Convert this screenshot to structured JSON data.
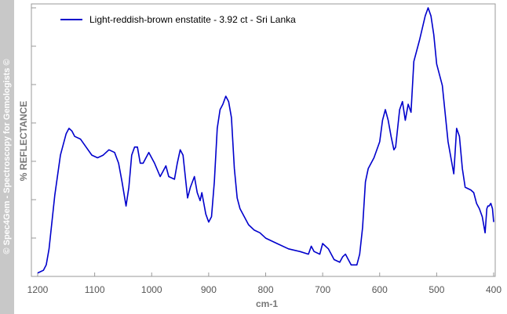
{
  "watermark": "© Spec4Gem - Spectroscopy for Gemologists ©",
  "colors": {
    "series": "#0000cc",
    "frame": "#9a9a9a",
    "sidebar": "#c8c8c8"
  },
  "chart_data": {
    "type": "line",
    "title": "",
    "xlabel": "cm-1",
    "ylabel": "% REFLECTANCE",
    "xlim": [
      1200,
      400
    ],
    "x_reversed": true,
    "ylim": [
      0,
      100
    ],
    "y_tick_labels_shown": false,
    "legend_position": "top-left",
    "x_ticks": [
      1200,
      1100,
      1000,
      900,
      800,
      700,
      600,
      500,
      400
    ],
    "x_tick_labels": [
      "1200",
      "1100",
      "1000",
      "900",
      "800",
      "700",
      "600",
      "500",
      "400"
    ],
    "series": [
      {
        "name": "Light-reddish-brown enstatite - 3.92 ct - Sri Lanka",
        "color": "#0000cc",
        "x": [
          1200,
          1190,
          1185,
          1180,
          1170,
          1160,
          1150,
          1145,
          1140,
          1135,
          1125,
          1115,
          1105,
          1095,
          1085,
          1075,
          1065,
          1058,
          1052,
          1045,
          1040,
          1035,
          1030,
          1025,
          1020,
          1015,
          1010,
          1005,
          995,
          985,
          980,
          975,
          970,
          960,
          955,
          950,
          945,
          937,
          932,
          925,
          920,
          915,
          912,
          905,
          900,
          895,
          890,
          885,
          880,
          875,
          870,
          865,
          860,
          855,
          850,
          845,
          840,
          830,
          820,
          810,
          800,
          780,
          760,
          740,
          725,
          720,
          715,
          705,
          700,
          690,
          680,
          670,
          665,
          660,
          655,
          650,
          645,
          640,
          635,
          630,
          625,
          620,
          610,
          600,
          595,
          590,
          585,
          580,
          575,
          572,
          565,
          560,
          555,
          550,
          545,
          540,
          530,
          520,
          515,
          510,
          505,
          500,
          490,
          480,
          470,
          465,
          460,
          455,
          450,
          440,
          435,
          430,
          425,
          420,
          415,
          412,
          410,
          408,
          405,
          402,
          400
        ],
        "y": [
          1,
          2,
          4,
          10,
          30,
          45,
          53,
          55,
          54,
          52,
          51,
          48,
          45,
          44,
          45,
          47,
          46,
          42,
          35,
          26,
          33,
          45,
          48,
          48,
          42,
          42,
          44,
          46,
          42,
          37,
          39,
          41,
          37,
          36,
          42,
          47,
          45,
          29,
          33,
          37,
          31,
          28,
          31,
          23,
          20,
          22,
          35,
          55,
          62,
          64,
          67,
          65,
          59,
          40,
          29,
          25,
          23,
          19,
          17,
          16,
          14,
          12,
          10,
          9,
          8,
          11,
          9,
          8,
          12,
          10,
          6,
          5,
          7,
          8,
          6,
          4,
          4,
          4,
          8,
          18,
          35,
          40,
          44,
          50,
          58,
          62,
          58,
          52,
          47,
          48,
          62,
          65,
          58,
          64,
          61,
          80,
          88,
          97,
          100,
          97,
          90,
          79,
          71,
          50,
          38,
          55,
          52,
          40,
          33,
          32,
          31,
          27,
          25,
          22,
          16,
          25,
          26,
          26,
          27,
          25,
          20
        ]
      }
    ]
  }
}
